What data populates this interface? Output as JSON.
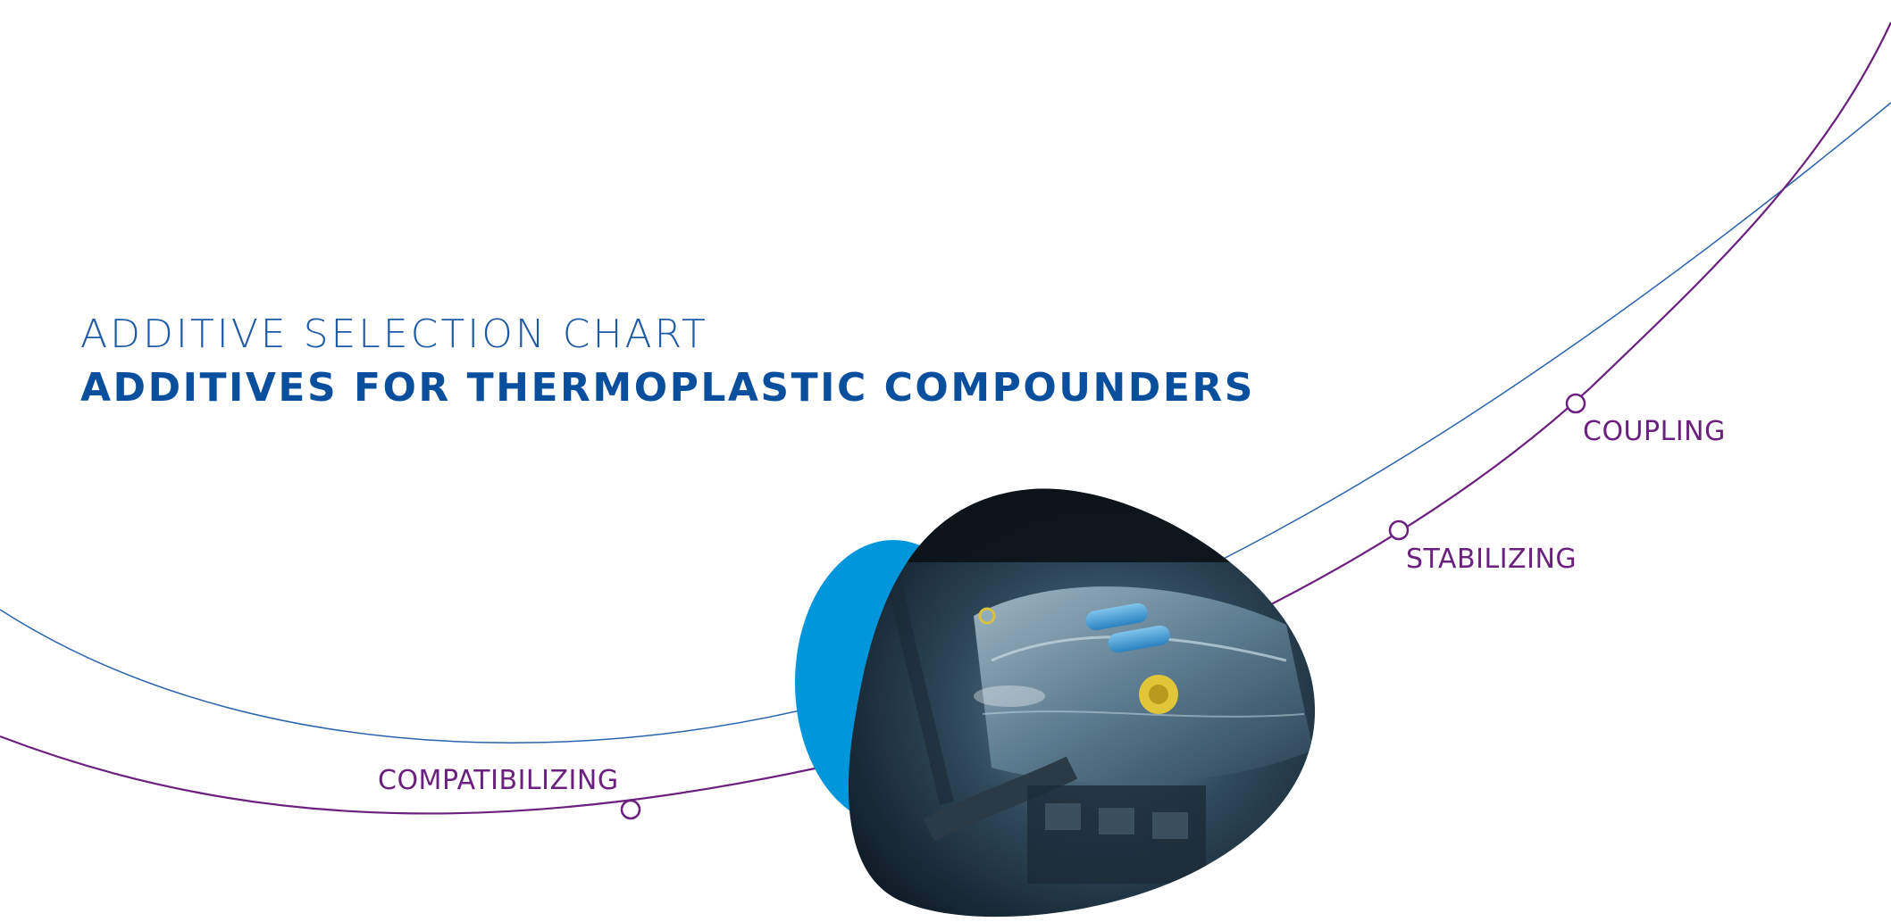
{
  "header": {
    "subtitle": "ADDITIVE SELECTION CHART",
    "title": "ADDITIVES FOR THERMOPLASTIC COMPOUNDERS"
  },
  "curve_labels": {
    "compatibilizing": "COMPATIBILIZING",
    "stabilizing": "STABILIZING",
    "coupling": "COUPLING"
  },
  "colors": {
    "title_blue": "#0a4f9e",
    "purple_line": "#6b1f7e",
    "blue_line": "#1f5aa6",
    "accent_blob": "#0096dc"
  },
  "image": {
    "subject": "car engine bay photo"
  }
}
